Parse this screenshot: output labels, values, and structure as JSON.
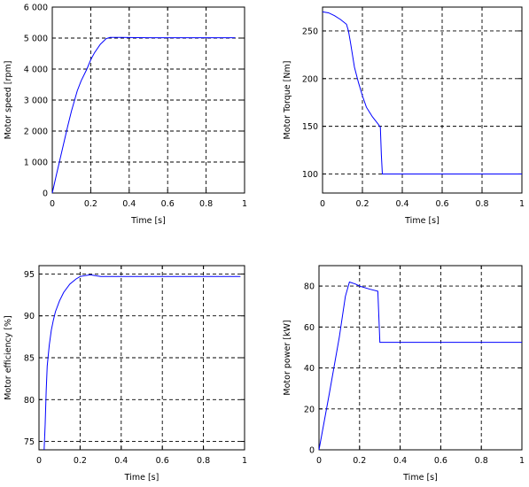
{
  "chart_data": [
    {
      "type": "line",
      "xlabel": "Time [s]",
      "ylabel": "Motor speed [rpm]",
      "xlim": [
        0,
        1
      ],
      "ylim": [
        0,
        6000
      ],
      "xticks": [
        0,
        0.2,
        0.4,
        0.6,
        0.8,
        1
      ],
      "xtick_labels": [
        "0",
        "0.2",
        "0.4",
        "0.6",
        "0.8",
        "1"
      ],
      "yticks": [
        0,
        1000,
        2000,
        3000,
        4000,
        5000,
        6000
      ],
      "ytick_labels": [
        "0",
        "1 000",
        "2 000",
        "3 000",
        "4 000",
        "5 000",
        "6 000"
      ],
      "grid": true,
      "color": "#0000ff",
      "series": [
        {
          "x": [
            0,
            0.02,
            0.05,
            0.08,
            0.1,
            0.13,
            0.15,
            0.18,
            0.2,
            0.22,
            0.25,
            0.28,
            0.3,
            0.35,
            0.5,
            0.7,
            0.9,
            0.95
          ],
          "values": [
            0,
            550,
            1350,
            2150,
            2650,
            3300,
            3620,
            4000,
            4300,
            4530,
            4800,
            4980,
            5020,
            5020,
            5010,
            5010,
            5010,
            5010
          ]
        }
      ]
    },
    {
      "type": "line",
      "xlabel": "Time [s]",
      "ylabel": "Motor Torque [Nm]",
      "xlim": [
        0,
        1
      ],
      "ylim": [
        80,
        275
      ],
      "xticks": [
        0,
        0.2,
        0.4,
        0.6,
        0.8,
        1
      ],
      "xtick_labels": [
        "0",
        "0.2",
        "0.4",
        "0.6",
        "0.8",
        "1"
      ],
      "yticks": [
        100,
        150,
        200,
        250
      ],
      "ytick_labels": [
        "100",
        "150",
        "200",
        "250"
      ],
      "grid": true,
      "color": "#0000ff",
      "series": [
        {
          "x": [
            0,
            0.03,
            0.06,
            0.09,
            0.12,
            0.13,
            0.14,
            0.15,
            0.16,
            0.18,
            0.2,
            0.22,
            0.25,
            0.28,
            0.29,
            0.295,
            0.3,
            0.4,
            0.6,
            0.8,
            1.0
          ],
          "values": [
            270,
            269,
            266,
            262,
            257,
            250,
            238,
            225,
            212,
            196,
            182,
            170,
            160,
            152,
            149,
            120,
            100,
            100,
            100,
            100,
            100
          ]
        }
      ]
    },
    {
      "type": "line",
      "xlabel": "Time [s]",
      "ylabel": "Motor efficiency [%]",
      "xlim": [
        0,
        1
      ],
      "ylim": [
        74,
        96
      ],
      "xticks": [
        0,
        0.2,
        0.4,
        0.6,
        0.8,
        1
      ],
      "xtick_labels": [
        "0",
        "0.2",
        "0.4",
        "0.6",
        "0.8",
        "1"
      ],
      "yticks": [
        75,
        80,
        85,
        90,
        95
      ],
      "ytick_labels": [
        "75",
        "80",
        "85",
        "90",
        "95"
      ],
      "grid": true,
      "color": "#0000ff",
      "series": [
        {
          "x": [
            0.025,
            0.03,
            0.035,
            0.04,
            0.05,
            0.06,
            0.07,
            0.08,
            0.1,
            0.12,
            0.15,
            0.18,
            0.2,
            0.22,
            0.25,
            0.3,
            0.5,
            0.7,
            0.9,
            0.98
          ],
          "values": [
            74,
            77,
            81,
            84,
            86.5,
            88.3,
            89.5,
            90.5,
            91.8,
            92.8,
            93.8,
            94.4,
            94.7,
            94.8,
            94.9,
            94.7,
            94.7,
            94.7,
            94.7,
            94.7
          ]
        }
      ]
    },
    {
      "type": "line",
      "xlabel": "Time [s]",
      "ylabel": "Motor power [kW]",
      "xlim": [
        0,
        1
      ],
      "ylim": [
        0,
        90
      ],
      "xticks": [
        0,
        0.2,
        0.4,
        0.6,
        0.8,
        1
      ],
      "xtick_labels": [
        "0",
        "0.2",
        "0.4",
        "0.6",
        "0.8",
        "1"
      ],
      "yticks": [
        0,
        20,
        40,
        60,
        80
      ],
      "ytick_labels": [
        "0",
        "20",
        "40",
        "60",
        "80"
      ],
      "grid": true,
      "color": "#0000ff",
      "series": [
        {
          "x": [
            0,
            0.05,
            0.1,
            0.13,
            0.15,
            0.18,
            0.2,
            0.25,
            0.29,
            0.3,
            0.35,
            0.6,
            0.8,
            1.0
          ],
          "values": [
            0,
            27,
            55,
            75,
            82,
            81,
            80,
            78.5,
            77.5,
            52.5,
            52.5,
            52.5,
            52.5,
            52.5
          ]
        }
      ]
    }
  ]
}
